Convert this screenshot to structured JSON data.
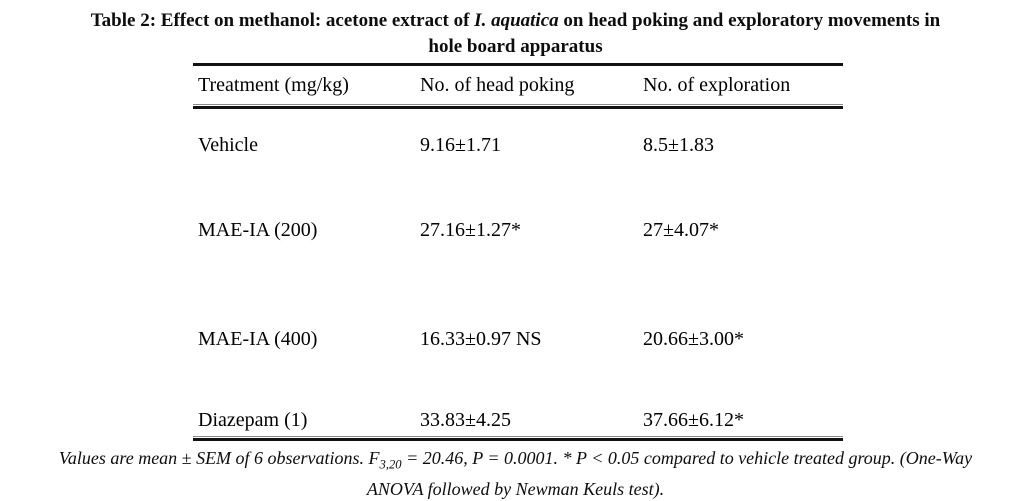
{
  "title": {
    "line1_prefix": "Table 2: Effect on methanol: acetone extract of ",
    "line1_italic": "I. aquatica",
    "line1_suffix": " on head poking and exploratory movements in",
    "line2": "hole board apparatus"
  },
  "table": {
    "columns": [
      "Treatment (mg/kg)",
      "No. of head poking",
      "No. of exploration"
    ],
    "rows": [
      {
        "treatment": "Vehicle",
        "head_poking": "9.16±1.71",
        "exploration": "8.5±1.83"
      },
      {
        "treatment": "MAE-IA (200)",
        "head_poking": "27.16±1.27*",
        "exploration": "27±4.07*"
      },
      {
        "treatment": "MAE-IA (400)",
        "head_poking": "16.33±0.97 NS",
        "exploration": "20.66±3.00*"
      },
      {
        "treatment": "Diazepam (1)",
        "head_poking": "33.83±4.25",
        "exploration": "37.66±6.12*"
      }
    ]
  },
  "chart_data": {
    "type": "table",
    "title": "Table 2: Effect on methanol: acetone extract of I. aquatica on head poking and exploratory movements in hole board apparatus",
    "columns": [
      "Treatment (mg/kg)",
      "No. of head poking",
      "No. of exploration"
    ],
    "rows": [
      [
        "Vehicle",
        "9.16±1.71",
        "8.5±1.83"
      ],
      [
        "MAE-IA (200)",
        "27.16±1.27*",
        "27±4.07*"
      ],
      [
        "MAE-IA (400)",
        "16.33±0.97 NS",
        "20.66±3.00*"
      ],
      [
        "Diazepam (1)",
        "33.83±4.25",
        "37.66±6.12*"
      ]
    ]
  },
  "footnote": {
    "line1_pre_f": "Values are mean ± SEM of 6 observations. F",
    "f_subscript": "3,20",
    "line1_post": " = 20.46, P = 0.0001. * P < 0.05 compared to vehicle treated group. (One-Way",
    "line2": "ANOVA followed by Newman Keuls test)."
  }
}
